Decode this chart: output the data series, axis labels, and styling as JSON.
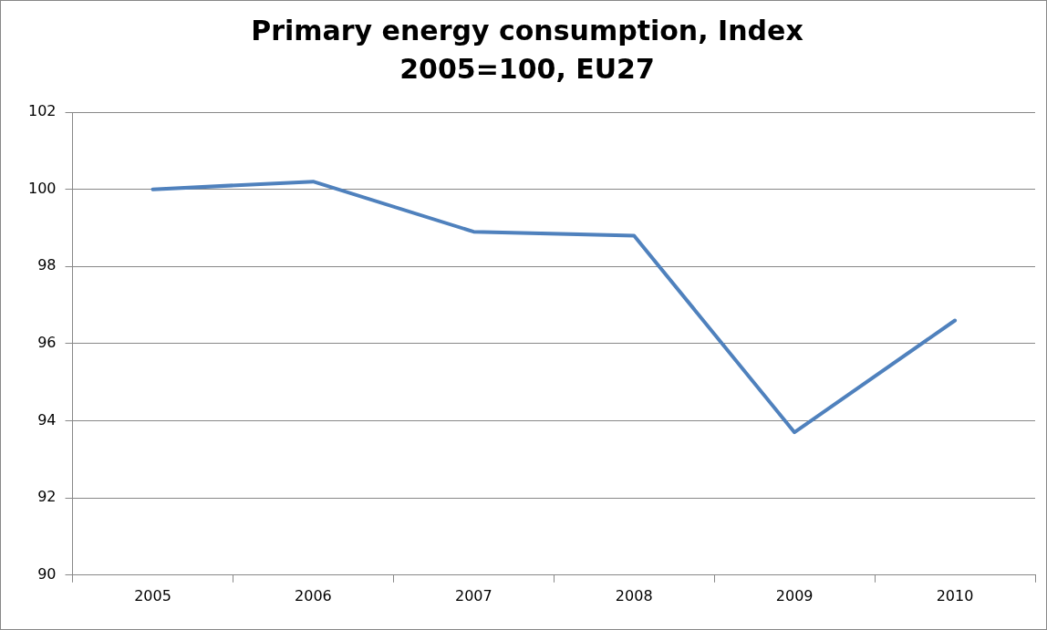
{
  "chart_data": {
    "type": "line",
    "title": "Primary energy consumption, Index\n2005=100, EU27",
    "categories": [
      "2005",
      "2006",
      "2007",
      "2008",
      "2009",
      "2010"
    ],
    "series": [
      {
        "color": "#4f81bd",
        "values": [
          100,
          100.2,
          98.9,
          98.8,
          93.7,
          96.6
        ]
      }
    ],
    "ylim": [
      90,
      102
    ],
    "yticks": [
      90,
      92,
      94,
      96,
      98,
      100,
      102
    ],
    "grid": "y",
    "legend": false,
    "marker": "none",
    "line_style": "solid"
  }
}
